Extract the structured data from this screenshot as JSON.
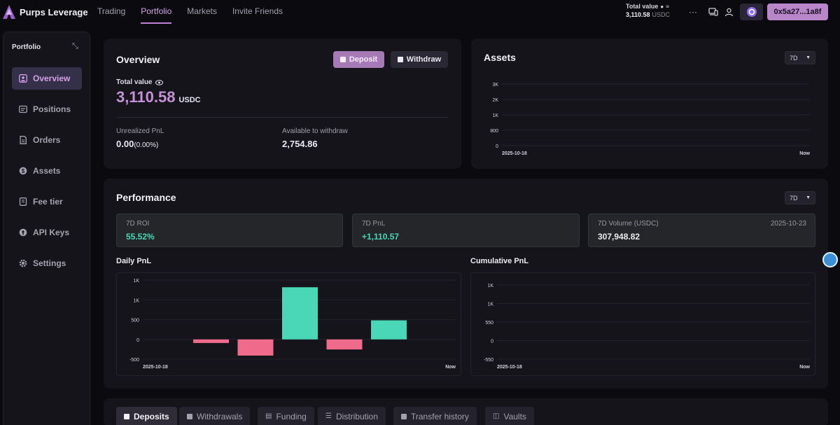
{
  "app": {
    "name": "Purps Leverage"
  },
  "nav": {
    "items": [
      {
        "label": "Trading",
        "active": false
      },
      {
        "label": "Portfolio",
        "active": true
      },
      {
        "label": "Markets",
        "active": false
      },
      {
        "label": "Invite Friends",
        "active": false
      }
    ]
  },
  "header": {
    "total_value_label": "Total value",
    "total_value": "3,110.58",
    "total_value_unit": "USDC",
    "wallet": "0x5a27...1a8f"
  },
  "sidebar": {
    "title": "Portfolio",
    "items": [
      {
        "label": "Overview",
        "icon": "user-square-icon",
        "active": true
      },
      {
        "label": "Positions",
        "icon": "positions-icon",
        "active": false
      },
      {
        "label": "Orders",
        "icon": "document-icon",
        "active": false
      },
      {
        "label": "Assets",
        "icon": "dollar-coin-icon",
        "active": false
      },
      {
        "label": "Fee tier",
        "icon": "tag-icon",
        "active": false
      },
      {
        "label": "API Keys",
        "icon": "key-icon",
        "active": false
      },
      {
        "label": "Settings",
        "icon": "gear-icon",
        "active": false
      }
    ]
  },
  "overview": {
    "title": "Overview",
    "deposit_label": "Deposit",
    "withdraw_label": "Withdraw",
    "total_value_label": "Total value",
    "total_value": "3,110.58",
    "total_value_unit": "USDC",
    "unrealized_pnl_label": "Unrealized PnL",
    "unrealized_pnl": "0.00",
    "unrealized_pnl_pct": "(0.00%)",
    "available_label": "Available to withdraw",
    "available": "2,754.86"
  },
  "assets": {
    "title": "Assets",
    "range": "7D"
  },
  "performance": {
    "title": "Performance",
    "range": "7D",
    "roi_label": "7D ROI",
    "roi": "55.52%",
    "pnl_label": "7D PnL",
    "pnl": "+1,110.57",
    "volume_label": "7D Volume (USDC)",
    "volume": "307,948.82",
    "volume_date": "2025-10-23",
    "daily_title": "Daily PnL",
    "cumulative_title": "Cumulative PnL"
  },
  "chart_data": [
    {
      "type": "line",
      "title": "Assets",
      "y_ticks": [
        "3K",
        "2K",
        "1K",
        "800",
        "0"
      ],
      "x_labels": [
        "2025-10-18",
        "Now"
      ],
      "ylim": [
        0,
        3000
      ],
      "series": [],
      "grid": true
    },
    {
      "type": "bar",
      "title": "Daily PnL",
      "y_ticks": [
        "1K",
        "1K",
        "500",
        "0",
        "-500"
      ],
      "x_labels": [
        "2025-10-18",
        "Now"
      ],
      "ylim": [
        -550,
        1650
      ],
      "values": [
        -100,
        -450,
        1450,
        -280,
        530
      ],
      "colors": {
        "positive": "#49d7b8",
        "negative": "#f06a8c"
      },
      "grid": true
    },
    {
      "type": "line",
      "title": "Cumulative PnL",
      "y_ticks": [
        "1K",
        "1K",
        "550",
        "0",
        "-550"
      ],
      "x_labels": [
        "2025-10-18",
        "Now"
      ],
      "series": [],
      "grid": true
    }
  ],
  "tabs": [
    {
      "label": "Deposits",
      "icon": "deposit-icon",
      "active": true
    },
    {
      "label": "Withdrawals",
      "icon": "withdraw-icon",
      "active": false
    },
    {
      "label": "Funding",
      "icon": "funding-icon",
      "active": false
    },
    {
      "label": "Distribution",
      "icon": "stack-icon",
      "active": false
    },
    {
      "label": "Transfer history",
      "icon": "transfer-icon",
      "active": false
    },
    {
      "label": "Vaults",
      "icon": "vault-icon",
      "active": false
    }
  ]
}
